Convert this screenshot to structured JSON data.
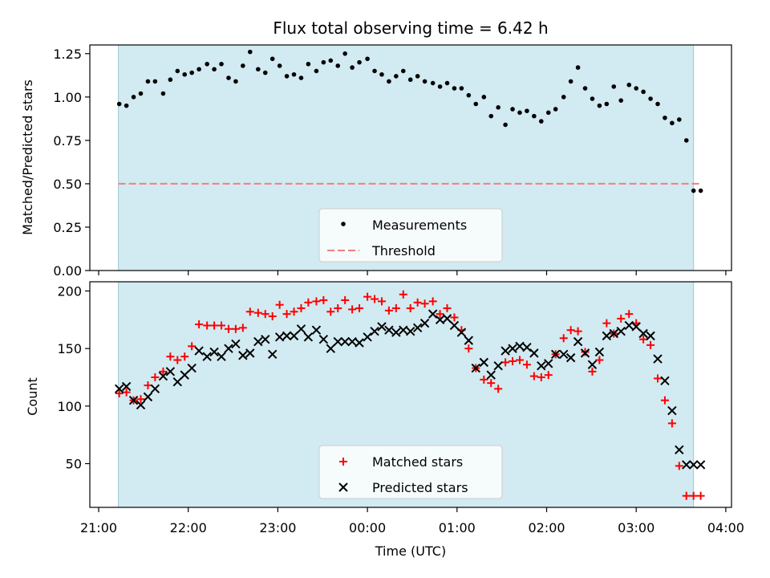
{
  "chart_data": {
    "type": "scatter",
    "title": "Flux total observing time = 6.42 h",
    "xlabel": "Time (UTC)",
    "x_tick_labels": [
      "21:00",
      "22:00",
      "23:00",
      "00:00",
      "01:00",
      "02:00",
      "03:00",
      "04:00"
    ],
    "x_tick_hours": [
      0,
      1,
      2,
      3,
      4,
      5,
      6,
      7
    ],
    "x_unit_note": "hours after 21:00 UTC",
    "observing_window_hours": [
      0.22,
      6.64
    ],
    "observing_window_color": "#add8e6",
    "panels": [
      {
        "ylabel": "Matched/Predicted stars",
        "ylim": [
          0,
          1.3
        ],
        "yticks": [
          "0.00",
          "0.25",
          "0.50",
          "0.75",
          "1.00",
          "1.25"
        ],
        "ytick_values": [
          0,
          0.25,
          0.5,
          0.75,
          1.0,
          1.25
        ],
        "threshold": {
          "name": "Threshold",
          "value": 0.5,
          "x_range": [
            0.22,
            6.72
          ],
          "color": "#f08080"
        },
        "legend": [
          "Measurements",
          "Threshold"
        ],
        "series": [
          {
            "name": "Measurements",
            "marker": "dot",
            "color": "#000000",
            "x": [
              0.23,
              0.31,
              0.39,
              0.47,
              0.55,
              0.63,
              0.72,
              0.8,
              0.88,
              0.96,
              1.04,
              1.12,
              1.21,
              1.29,
              1.37,
              1.45,
              1.53,
              1.61,
              1.69,
              1.78,
              1.86,
              1.94,
              2.02,
              2.1,
              2.18,
              2.26,
              2.34,
              2.43,
              2.51,
              2.59,
              2.67,
              2.75,
              2.83,
              2.91,
              3.0,
              3.08,
              3.16,
              3.24,
              3.32,
              3.4,
              3.48,
              3.56,
              3.64,
              3.73,
              3.81,
              3.89,
              3.97,
              4.05,
              4.13,
              4.21,
              4.3,
              4.38,
              4.46,
              4.54,
              4.62,
              4.7,
              4.78,
              4.86,
              4.94,
              5.02,
              5.1,
              5.19,
              5.27,
              5.35,
              5.43,
              5.51,
              5.59,
              5.67,
              5.75,
              5.83,
              5.92,
              6.0,
              6.08,
              6.16,
              6.24,
              6.32,
              6.4,
              6.48,
              6.56,
              6.64,
              6.72
            ],
            "y": [
              0.96,
              0.95,
              1.0,
              1.02,
              1.09,
              1.09,
              1.02,
              1.1,
              1.15,
              1.13,
              1.14,
              1.16,
              1.19,
              1.16,
              1.19,
              1.11,
              1.09,
              1.18,
              1.26,
              1.16,
              1.14,
              1.22,
              1.18,
              1.12,
              1.13,
              1.11,
              1.19,
              1.15,
              1.2,
              1.21,
              1.18,
              1.25,
              1.17,
              1.2,
              1.22,
              1.15,
              1.13,
              1.09,
              1.12,
              1.15,
              1.1,
              1.12,
              1.09,
              1.08,
              1.06,
              1.08,
              1.05,
              1.05,
              1.01,
              0.96,
              1.0,
              0.89,
              0.94,
              0.84,
              0.93,
              0.91,
              0.92,
              0.89,
              0.86,
              0.91,
              0.93,
              1.0,
              1.09,
              1.17,
              1.05,
              0.99,
              0.95,
              0.96,
              1.06,
              0.98,
              1.07,
              1.05,
              1.03,
              0.99,
              0.96,
              0.88,
              0.85,
              0.87,
              0.75,
              0.46,
              0.46
            ]
          }
        ]
      },
      {
        "ylabel": "Count",
        "ylim": [
          12,
          208
        ],
        "yticks": [
          "50",
          "100",
          "150",
          "200"
        ],
        "ytick_values": [
          50,
          100,
          150,
          200
        ],
        "legend": [
          "Matched stars",
          "Predicted stars"
        ],
        "series": [
          {
            "name": "Matched stars",
            "marker": "plus",
            "color": "#ff0000",
            "x": [
              0.23,
              0.31,
              0.39,
              0.47,
              0.55,
              0.63,
              0.72,
              0.8,
              0.88,
              0.96,
              1.04,
              1.12,
              1.21,
              1.29,
              1.37,
              1.45,
              1.53,
              1.61,
              1.69,
              1.78,
              1.86,
              1.94,
              2.02,
              2.1,
              2.18,
              2.26,
              2.34,
              2.43,
              2.51,
              2.59,
              2.67,
              2.75,
              2.83,
              2.91,
              3.0,
              3.08,
              3.16,
              3.24,
              3.32,
              3.4,
              3.48,
              3.56,
              3.64,
              3.73,
              3.81,
              3.89,
              3.97,
              4.05,
              4.13,
              4.21,
              4.3,
              4.38,
              4.46,
              4.54,
              4.62,
              4.7,
              4.78,
              4.86,
              4.94,
              5.02,
              5.1,
              5.19,
              5.27,
              5.35,
              5.43,
              5.51,
              5.59,
              5.67,
              5.75,
              5.83,
              5.92,
              6.0,
              6.08,
              6.16,
              6.24,
              6.32,
              6.4,
              6.48,
              6.56,
              6.64,
              6.72
            ],
            "y": [
              111,
              112,
              105,
              106,
              118,
              125,
              130,
              143,
              140,
              143,
              152,
              171,
              170,
              170,
              170,
              167,
              167,
              168,
              182,
              181,
              180,
              178,
              188,
              180,
              182,
              185,
              190,
              191,
              192,
              182,
              185,
              192,
              184,
              185,
              195,
              193,
              191,
              183,
              185,
              197,
              185,
              190,
              189,
              191,
              180,
              185,
              177,
              166,
              150,
              133,
              123,
              120,
              115,
              138,
              139,
              140,
              136,
              126,
              125,
              127,
              145,
              159,
              166,
              165,
              147,
              130,
              140,
              172,
              163,
              176,
              180,
              172,
              158,
              153,
              124,
              105,
              85,
              48,
              22,
              22,
              22
            ]
          },
          {
            "name": "Predicted stars",
            "marker": "x",
            "color": "#000000",
            "x": [
              0.23,
              0.31,
              0.39,
              0.47,
              0.55,
              0.63,
              0.72,
              0.8,
              0.88,
              0.96,
              1.04,
              1.12,
              1.21,
              1.29,
              1.37,
              1.45,
              1.53,
              1.61,
              1.69,
              1.78,
              1.86,
              1.94,
              2.02,
              2.1,
              2.18,
              2.26,
              2.34,
              2.43,
              2.51,
              2.59,
              2.67,
              2.75,
              2.83,
              2.91,
              3.0,
              3.08,
              3.16,
              3.24,
              3.32,
              3.4,
              3.48,
              3.56,
              3.64,
              3.73,
              3.81,
              3.89,
              3.97,
              4.05,
              4.13,
              4.21,
              4.3,
              4.38,
              4.46,
              4.54,
              4.62,
              4.7,
              4.78,
              4.86,
              4.94,
              5.02,
              5.1,
              5.19,
              5.27,
              5.35,
              5.43,
              5.51,
              5.59,
              5.67,
              5.75,
              5.83,
              5.92,
              6.0,
              6.08,
              6.16,
              6.24,
              6.32,
              6.4,
              6.48,
              6.56,
              6.64,
              6.72
            ],
            "y": [
              115,
              117,
              105,
              101,
              108,
              115,
              126,
              130,
              121,
              127,
              133,
              148,
              143,
              147,
              143,
              150,
              154,
              144,
              146,
              156,
              158,
              145,
              160,
              161,
              161,
              167,
              160,
              166,
              158,
              150,
              156,
              156,
              156,
              155,
              160,
              165,
              169,
              166,
              164,
              166,
              165,
              168,
              172,
              180,
              175,
              176,
              170,
              164,
              157,
              133,
              138,
              127,
              135,
              148,
              150,
              152,
              151,
              146,
              135,
              137,
              145,
              145,
              142,
              156,
              146,
              136,
              147,
              161,
              163,
              165,
              170,
              169,
              163,
              161,
              141,
              122,
              96,
              62,
              49,
              49,
              49
            ]
          }
        ]
      }
    ]
  }
}
